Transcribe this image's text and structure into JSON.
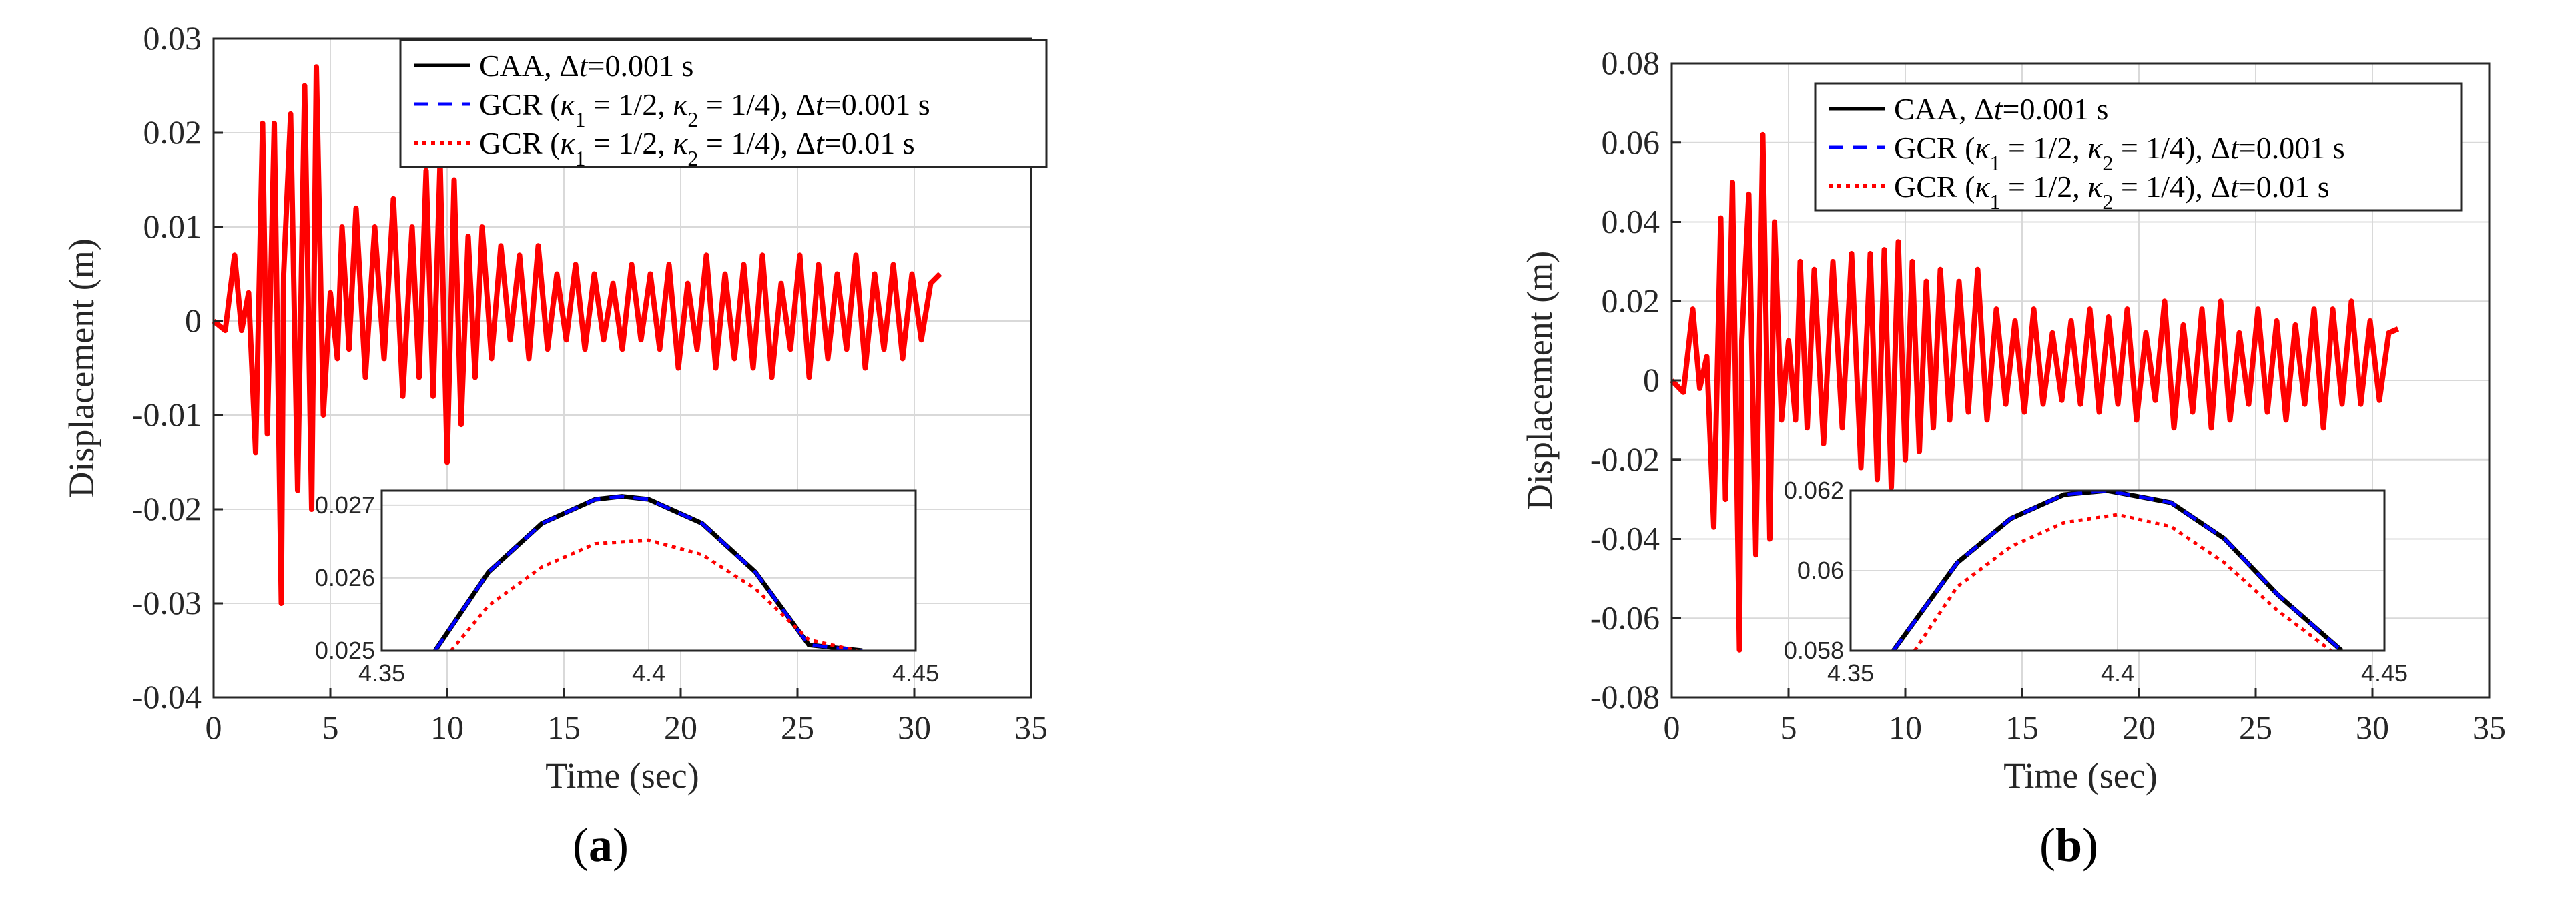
{
  "figure": {
    "captions": [
      {
        "open": "(",
        "letter": "a",
        "close": ")"
      },
      {
        "open": "(",
        "letter": "b",
        "close": ")"
      }
    ]
  },
  "colors": {
    "caa": "#000000",
    "gcr_fine": "#0000ff",
    "gcr_coarse": "#ff0000",
    "grid": "#d9d9d9",
    "axis": "#262626"
  },
  "chart_data": [
    {
      "type": "line",
      "panel": "a",
      "xlabel": "Time (sec)",
      "ylabel": "Displacement (m)",
      "xlim": [
        0,
        35
      ],
      "ylim": [
        -0.04,
        0.03
      ],
      "xticks": [
        "0",
        "5",
        "10",
        "15",
        "20",
        "25",
        "30",
        "35"
      ],
      "xtick_values": [
        0,
        5,
        10,
        15,
        20,
        25,
        30,
        35
      ],
      "yticks": [
        "-0.04",
        "-0.03",
        "-0.02",
        "-0.01",
        "0",
        "0.01",
        "0.02",
        "0.03"
      ],
      "ytick_values": [
        -0.04,
        -0.03,
        -0.02,
        -0.01,
        0,
        0.01,
        0.02,
        0.03
      ],
      "grid": true,
      "legend_position": "top-right",
      "legend": [
        {
          "pre": "CAA, ",
          "sym": "Δ",
          "var": "t",
          "post": "=0.001 s",
          "style": "solid",
          "color": "#000000"
        },
        {
          "pre": "GCR (",
          "k1": "κ",
          "k1s": "1",
          "k1v": " = 1/2, ",
          "k2": "κ",
          "k2s": "2",
          "k2v": " = 1/4), ",
          "sym": "Δ",
          "var": "t",
          "post": "=0.001 s",
          "style": "dashed",
          "color": "#0000ff"
        },
        {
          "pre": "GCR (",
          "k1": "κ",
          "k1s": "1",
          "k1v": " = 1/2, ",
          "k2": "κ",
          "k2s": "2",
          "k2v": " = 1/4), ",
          "sym": "Δ",
          "var": "t",
          "post": "=0.01 s",
          "style": "dotted",
          "color": "#ff0000"
        }
      ],
      "series": [
        {
          "style": "solid",
          "x": [
            0,
            0.5,
            0.9,
            1.2,
            1.5,
            1.8,
            2.1,
            2.3,
            2.6,
            2.9,
            3.0,
            3.3,
            3.6,
            3.9,
            4.2,
            4.4,
            4.7,
            5.0,
            5.3,
            5.5,
            5.8,
            6.1,
            6.5,
            6.9,
            7.3,
            7.7,
            8.1,
            8.5,
            8.8,
            9.1,
            9.4,
            9.7,
            10.0,
            10.3,
            10.6,
            10.9,
            11.2,
            11.5,
            11.9,
            12.3,
            12.7,
            13.1,
            13.5,
            13.9,
            14.3,
            14.7,
            15.1,
            15.5,
            15.9,
            16.3,
            16.7,
            17.1,
            17.5,
            17.9,
            18.3,
            18.7,
            19.1,
            19.5,
            19.9,
            20.3,
            20.7,
            21.1,
            21.5,
            21.9,
            22.3,
            22.7,
            23.1,
            23.5,
            23.9,
            24.3,
            24.7,
            25.1,
            25.5,
            25.9,
            26.3,
            26.7,
            27.1,
            27.5,
            27.9,
            28.3,
            28.7,
            29.1,
            29.5,
            29.9,
            30.3,
            30.7,
            31.1
          ],
          "y": [
            0,
            -0.001,
            0.007,
            -0.001,
            0.003,
            -0.014,
            0.021,
            -0.012,
            0.021,
            -0.03,
            0.005,
            0.022,
            -0.018,
            0.025,
            -0.02,
            0.027,
            -0.01,
            0.003,
            -0.004,
            0.01,
            -0.003,
            0.012,
            -0.006,
            0.01,
            -0.004,
            0.013,
            -0.008,
            0.01,
            -0.006,
            0.016,
            -0.008,
            0.017,
            -0.015,
            0.015,
            -0.011,
            0.009,
            -0.006,
            0.01,
            -0.004,
            0.008,
            -0.002,
            0.007,
            -0.004,
            0.008,
            -0.003,
            0.005,
            -0.002,
            0.006,
            -0.003,
            0.005,
            -0.002,
            0.004,
            -0.003,
            0.006,
            -0.002,
            0.005,
            -0.003,
            0.006,
            -0.005,
            0.004,
            -0.003,
            0.007,
            -0.005,
            0.005,
            -0.004,
            0.006,
            -0.005,
            0.007,
            -0.006,
            0.004,
            -0.003,
            0.007,
            -0.006,
            0.006,
            -0.004,
            0.005,
            -0.003,
            0.007,
            -0.005,
            0.005,
            -0.003,
            0.006,
            -0.004,
            0.005,
            -0.002,
            0.004,
            0.005
          ]
        }
      ],
      "inset": {
        "xlim": [
          4.35,
          4.45
        ],
        "ylim": [
          0.025,
          0.0272
        ],
        "xticks": [
          "4.35",
          "4.4",
          "4.45"
        ],
        "xtick_values": [
          4.35,
          4.4,
          4.45
        ],
        "yticks": [
          "0.025",
          "0.026",
          "0.027"
        ],
        "ytick_values": [
          0.025,
          0.026,
          0.027
        ],
        "curves": [
          {
            "style": "solid",
            "x": [
              4.36,
              4.37,
              4.38,
              4.39,
              4.395,
              4.4,
              4.41,
              4.42,
              4.43,
              4.44
            ],
            "y": [
              0.025,
              0.02608,
              0.02675,
              0.02708,
              0.02712,
              0.02708,
              0.02675,
              0.02608,
              0.02508,
              0.025
            ]
          },
          {
            "style": "dashed",
            "x": [
              4.36,
              4.37,
              4.38,
              4.39,
              4.395,
              4.4,
              4.41,
              4.42,
              4.43,
              4.44
            ],
            "y": [
              0.025,
              0.02608,
              0.02675,
              0.02708,
              0.02712,
              0.02708,
              0.02675,
              0.02608,
              0.02508,
              0.025
            ]
          },
          {
            "style": "dotted",
            "x": [
              4.363,
              4.37,
              4.38,
              4.39,
              4.4,
              4.41,
              4.42,
              4.43,
              4.439
            ],
            "y": [
              0.025,
              0.02562,
              0.02615,
              0.02647,
              0.02652,
              0.02632,
              0.02585,
              0.02515,
              0.025
            ]
          }
        ]
      }
    },
    {
      "type": "line",
      "panel": "b",
      "xlabel": "Time (sec)",
      "ylabel": "Displacement (m)",
      "xlim": [
        0,
        35
      ],
      "ylim": [
        -0.08,
        0.08
      ],
      "xticks": [
        "0",
        "5",
        "10",
        "15",
        "20",
        "25",
        "30",
        "35"
      ],
      "xtick_values": [
        0,
        5,
        10,
        15,
        20,
        25,
        30,
        35
      ],
      "yticks": [
        "-0.08",
        "-0.06",
        "-0.04",
        "-0.02",
        "0",
        "0.02",
        "0.04",
        "0.06",
        "0.08"
      ],
      "ytick_values": [
        -0.08,
        -0.06,
        -0.04,
        -0.02,
        0,
        0.02,
        0.04,
        0.06,
        0.08
      ],
      "grid": true,
      "legend_position": "top-right",
      "legend": [
        {
          "pre": "CAA, ",
          "sym": "Δ",
          "var": "t",
          "post": "=0.001 s",
          "style": "solid",
          "color": "#000000"
        },
        {
          "pre": "GCR (",
          "k1": "κ",
          "k1s": "1",
          "k1v": " = 1/2, ",
          "k2": "κ",
          "k2s": "2",
          "k2v": " = 1/4), ",
          "sym": "Δ",
          "var": "t",
          "post": "=0.001 s",
          "style": "dashed",
          "color": "#0000ff"
        },
        {
          "pre": "GCR (",
          "k1": "κ",
          "k1s": "1",
          "k1v": " = 1/2, ",
          "k2": "κ",
          "k2s": "2",
          "k2v": " = 1/4), ",
          "sym": "Δ",
          "var": "t",
          "post": "=0.01 s",
          "style": "dotted",
          "color": "#ff0000"
        }
      ],
      "series": [
        {
          "style": "solid",
          "x": [
            0,
            0.5,
            0.9,
            1.2,
            1.5,
            1.8,
            2.1,
            2.3,
            2.6,
            2.9,
            3.0,
            3.3,
            3.6,
            3.9,
            4.2,
            4.4,
            4.7,
            5.0,
            5.3,
            5.5,
            5.8,
            6.1,
            6.5,
            6.9,
            7.3,
            7.7,
            8.1,
            8.5,
            8.8,
            9.1,
            9.4,
            9.7,
            10.0,
            10.3,
            10.6,
            10.9,
            11.2,
            11.5,
            11.9,
            12.3,
            12.7,
            13.1,
            13.5,
            13.9,
            14.3,
            14.7,
            15.1,
            15.5,
            15.9,
            16.3,
            16.7,
            17.1,
            17.5,
            17.9,
            18.3,
            18.7,
            19.1,
            19.5,
            19.9,
            20.3,
            20.7,
            21.1,
            21.5,
            21.9,
            22.3,
            22.7,
            23.1,
            23.5,
            23.9,
            24.3,
            24.7,
            25.1,
            25.5,
            25.9,
            26.3,
            26.7,
            27.1,
            27.5,
            27.9,
            28.3,
            28.7,
            29.1,
            29.5,
            29.9,
            30.3,
            30.7,
            31.1
          ],
          "y": [
            0,
            -0.003,
            0.018,
            -0.002,
            0.006,
            -0.037,
            0.041,
            -0.03,
            0.05,
            -0.068,
            0.01,
            0.047,
            -0.044,
            0.062,
            -0.04,
            0.04,
            -0.01,
            0.01,
            -0.01,
            0.03,
            -0.012,
            0.028,
            -0.016,
            0.03,
            -0.012,
            0.032,
            -0.022,
            0.032,
            -0.025,
            0.033,
            -0.027,
            0.035,
            -0.02,
            0.03,
            -0.018,
            0.025,
            -0.012,
            0.028,
            -0.01,
            0.025,
            -0.008,
            0.028,
            -0.01,
            0.018,
            -0.006,
            0.015,
            -0.008,
            0.018,
            -0.006,
            0.012,
            -0.005,
            0.015,
            -0.006,
            0.018,
            -0.008,
            0.016,
            -0.006,
            0.018,
            -0.01,
            0.012,
            -0.005,
            0.02,
            -0.012,
            0.014,
            -0.008,
            0.018,
            -0.012,
            0.02,
            -0.01,
            0.012,
            -0.006,
            0.018,
            -0.008,
            0.015,
            -0.01,
            0.014,
            -0.006,
            0.018,
            -0.012,
            0.018,
            -0.006,
            0.02,
            -0.006,
            0.015,
            -0.005,
            0.012,
            0.013
          ]
        }
      ],
      "inset": {
        "xlim": [
          4.35,
          4.45
        ],
        "ylim": [
          0.058,
          0.062
        ],
        "xticks": [
          "4.35",
          "4.4",
          "4.45"
        ],
        "xtick_values": [
          4.35,
          4.4,
          4.45
        ],
        "yticks": [
          "0.058",
          "0.06",
          "0.062"
        ],
        "ytick_values": [
          0.058,
          0.06,
          0.062
        ],
        "curves": [
          {
            "style": "solid",
            "x": [
              4.358,
              4.37,
              4.38,
              4.39,
              4.398,
              4.41,
              4.42,
              4.43,
              4.442
            ],
            "y": [
              0.058,
              0.0602,
              0.0613,
              0.0619,
              0.062,
              0.0617,
              0.0608,
              0.0594,
              0.058
            ]
          },
          {
            "style": "dashed",
            "x": [
              4.358,
              4.37,
              4.38,
              4.39,
              4.398,
              4.41,
              4.42,
              4.43,
              4.442
            ],
            "y": [
              0.058,
              0.0602,
              0.0613,
              0.0619,
              0.062,
              0.0617,
              0.0608,
              0.0594,
              0.058
            ]
          },
          {
            "style": "dotted",
            "x": [
              4.362,
              4.37,
              4.38,
              4.39,
              4.4,
              4.41,
              4.42,
              4.43,
              4.44
            ],
            "y": [
              0.058,
              0.0596,
              0.0606,
              0.0612,
              0.0614,
              0.0611,
              0.0602,
              0.059,
              0.058
            ]
          }
        ]
      }
    }
  ]
}
